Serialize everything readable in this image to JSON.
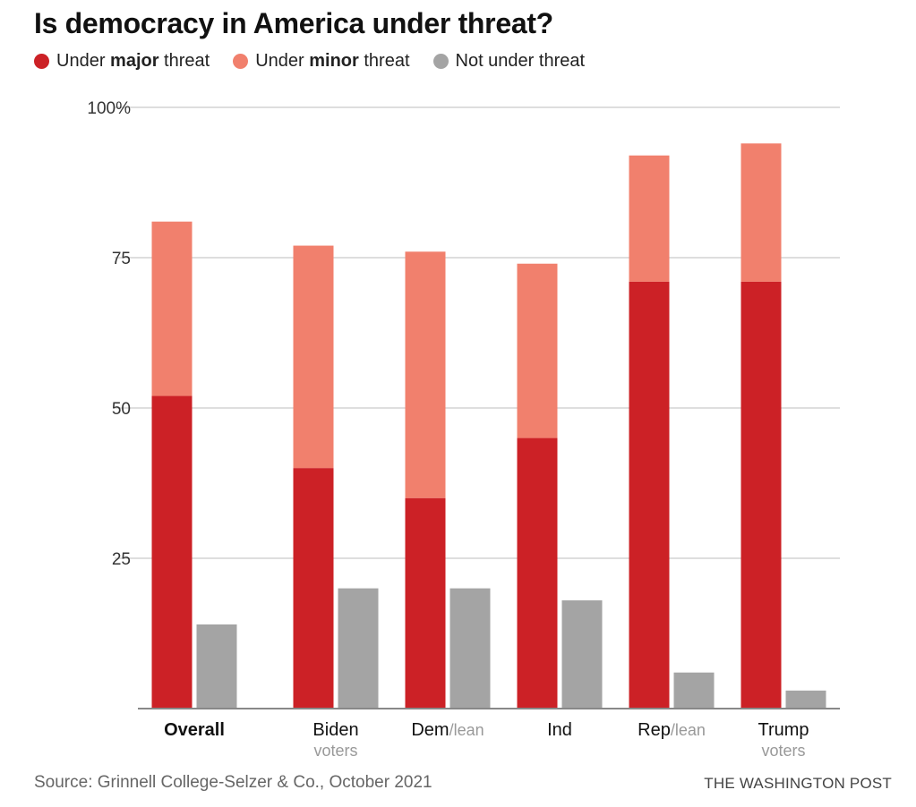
{
  "title": "Is democracy in America under threat?",
  "legend": [
    {
      "pre": "Under ",
      "bold": "major",
      "post": " threat",
      "color": "#cc2126"
    },
    {
      "pre": "Under ",
      "bold": "minor",
      "post": " threat",
      "color": "#f1806d"
    },
    {
      "pre": "Not under threat",
      "bold": "",
      "post": "",
      "color": "#a4a4a4"
    }
  ],
  "source": "Source: Grinnell College-Selzer & Co., October 2021",
  "brand": "THE WASHINGTON POST",
  "chart_data": {
    "type": "bar",
    "title": "Is democracy in America under threat?",
    "xlabel": "",
    "ylabel": "",
    "ylim": [
      0,
      100
    ],
    "yticks": [
      25,
      50,
      75,
      100
    ],
    "ytick_labels": [
      "25",
      "50",
      "75",
      "100%"
    ],
    "grid": true,
    "legend_position": "top-left",
    "categories": [
      {
        "label": "Overall",
        "sub": "",
        "suffix": "",
        "bold": true
      },
      {
        "label": "Biden",
        "sub": "voters",
        "suffix": "",
        "bold": false
      },
      {
        "label": "Dem",
        "sub": "",
        "suffix": "/lean",
        "bold": false
      },
      {
        "label": "Ind",
        "sub": "",
        "suffix": "",
        "bold": false
      },
      {
        "label": "Rep",
        "sub": "",
        "suffix": "/lean",
        "bold": false
      },
      {
        "label": "Trump",
        "sub": "voters",
        "suffix": "",
        "bold": false
      }
    ],
    "series": [
      {
        "name": "Under major threat",
        "color": "#cc2126",
        "stack": "threat",
        "values": [
          52,
          40,
          35,
          45,
          71,
          71
        ]
      },
      {
        "name": "Under minor threat",
        "color": "#f1806d",
        "stack": "threat",
        "values": [
          29,
          37,
          41,
          29,
          21,
          23
        ]
      },
      {
        "name": "Not under threat",
        "color": "#a4a4a4",
        "stack": "not",
        "values": [
          14,
          20,
          20,
          18,
          6,
          3
        ]
      }
    ]
  }
}
